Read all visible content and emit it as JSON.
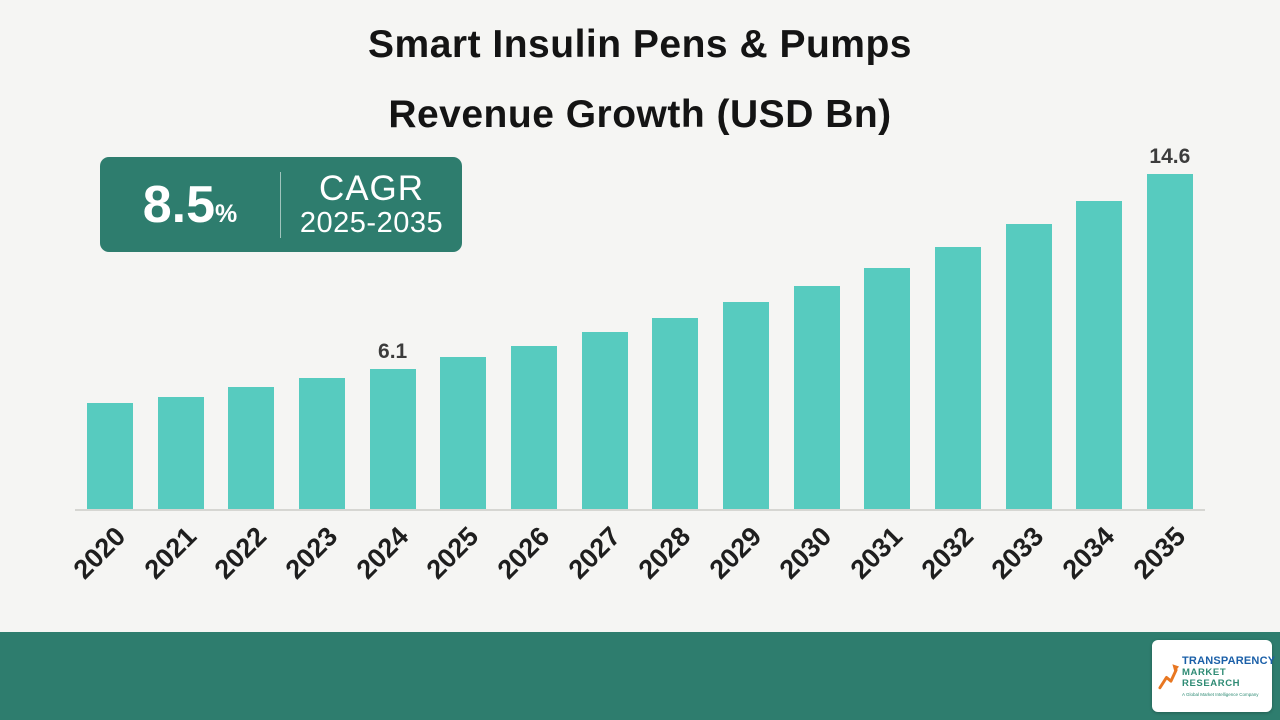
{
  "title": {
    "line1": "Smart Insulin Pens & Pumps",
    "line2": "Revenue Growth (USD Bn)"
  },
  "cagr_badge": {
    "value": "8.5",
    "percent_sign": "%",
    "label": "CAGR",
    "period": "2025-2035"
  },
  "chart_data": {
    "type": "bar",
    "title": "Smart Insulin Pens & Pumps Revenue Growth (USD Bn)",
    "categories": [
      "2020",
      "2021",
      "2022",
      "2023",
      "2024",
      "2025",
      "2026",
      "2027",
      "2028",
      "2029",
      "2030",
      "2031",
      "2032",
      "2033",
      "2034",
      "2035"
    ],
    "values": [
      4.6,
      4.9,
      5.3,
      5.7,
      6.1,
      6.6,
      7.1,
      7.7,
      8.3,
      9.0,
      9.7,
      10.5,
      11.4,
      12.4,
      13.4,
      14.6
    ],
    "value_labels": {
      "2024": "6.1",
      "2035": "14.6"
    },
    "xlabel": "",
    "ylabel": "",
    "ylim": [
      0,
      15.2
    ],
    "grid": false,
    "legend": false,
    "bar_color": "#57CBBF",
    "cagr_percent": 8.5,
    "cagr_period": "2025-2035"
  },
  "footer": {
    "logo": {
      "line1": "TRANSPARENCY",
      "line2": "MARKET RESEARCH",
      "tagline": "A Global Market Intelligence Company"
    }
  },
  "colors": {
    "background": "#F5F5F3",
    "bar": "#57CBBF",
    "teal_dark": "#2E7D6E",
    "title_text": "#141414",
    "logo_blue": "#1A5FA8",
    "logo_green": "#2E8B74",
    "logo_orange": "#E87722"
  }
}
